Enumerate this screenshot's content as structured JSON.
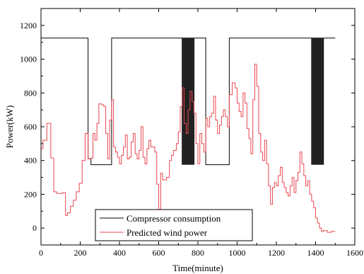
{
  "chart_data": {
    "type": "line",
    "xlabel": "Time(minute)",
    "ylabel": "Power(kW)",
    "xlim": [
      0,
      1600
    ],
    "ylim": [
      -100,
      1300
    ],
    "xticks": [
      0,
      200,
      400,
      600,
      800,
      1000,
      1200,
      1400,
      1600
    ],
    "yticks": [
      0,
      200,
      400,
      600,
      800,
      1000,
      1200
    ],
    "x_tick_labels": [
      "0",
      "200",
      "400",
      "600",
      "800",
      "1000",
      "1200",
      "1400",
      "1600"
    ],
    "y_tick_labels": [
      "0",
      "200",
      "400",
      "600",
      "800",
      "1000",
      "1200"
    ],
    "grid": false,
    "legend_position": "bottom-center",
    "series": [
      {
        "name": "Compressor consumption",
        "color": "#000000",
        "render": "line",
        "points": [
          [
            0,
            1125
          ],
          [
            240,
            1125
          ],
          [
            240,
            410
          ],
          [
            255,
            410
          ],
          [
            255,
            375
          ],
          [
            360,
            375
          ],
          [
            360,
            1125
          ],
          [
            840,
            1125
          ],
          [
            840,
            375
          ],
          [
            960,
            375
          ],
          [
            960,
            1125
          ],
          [
            1500,
            1125
          ]
        ],
        "oscillation_bands": [
          {
            "x_start": 720,
            "x_end": 780,
            "low": 375,
            "high": 1125
          },
          {
            "x_start": 1380,
            "x_end": 1440,
            "low": 375,
            "high": 1125
          }
        ]
      },
      {
        "name": "Predicted wind power",
        "color": "#e8474f",
        "render": "step",
        "points": [
          [
            0,
            470
          ],
          [
            10,
            520
          ],
          [
            30,
            620
          ],
          [
            50,
            415
          ],
          [
            65,
            215
          ],
          [
            80,
            205
          ],
          [
            110,
            210
          ],
          [
            125,
            75
          ],
          [
            135,
            90
          ],
          [
            150,
            130
          ],
          [
            165,
            165
          ],
          [
            180,
            215
          ],
          [
            195,
            265
          ],
          [
            210,
            400
          ],
          [
            225,
            560
          ],
          [
            240,
            410
          ],
          [
            255,
            415
          ],
          [
            265,
            560
          ],
          [
            275,
            520
          ],
          [
            285,
            620
          ],
          [
            295,
            735
          ],
          [
            310,
            730
          ],
          [
            320,
            720
          ],
          [
            330,
            560
          ],
          [
            340,
            410
          ],
          [
            350,
            640
          ],
          [
            360,
            760
          ],
          [
            370,
            480
          ],
          [
            380,
            450
          ],
          [
            390,
            420
          ],
          [
            400,
            380
          ],
          [
            410,
            430
          ],
          [
            420,
            480
          ],
          [
            430,
            550
          ],
          [
            440,
            410
          ],
          [
            450,
            420
          ],
          [
            460,
            510
          ],
          [
            470,
            560
          ],
          [
            480,
            440
          ],
          [
            490,
            410
          ],
          [
            500,
            460
          ],
          [
            510,
            600
          ],
          [
            520,
            420
          ],
          [
            530,
            380
          ],
          [
            540,
            470
          ],
          [
            550,
            520
          ],
          [
            560,
            480
          ],
          [
            580,
            450
          ],
          [
            590,
            260
          ],
          [
            600,
            110
          ],
          [
            610,
            325
          ],
          [
            620,
            285
          ],
          [
            640,
            300
          ],
          [
            655,
            400
          ],
          [
            665,
            430
          ],
          [
            675,
            460
          ],
          [
            690,
            500
          ],
          [
            700,
            570
          ],
          [
            710,
            720
          ],
          [
            720,
            830
          ],
          [
            730,
            620
          ],
          [
            740,
            560
          ],
          [
            750,
            700
          ],
          [
            760,
            810
          ],
          [
            770,
            750
          ],
          [
            780,
            680
          ],
          [
            790,
            500
          ],
          [
            800,
            380
          ],
          [
            810,
            560
          ],
          [
            820,
            500
          ],
          [
            830,
            450
          ],
          [
            840,
            650
          ],
          [
            850,
            600
          ],
          [
            860,
            660
          ],
          [
            870,
            680
          ],
          [
            880,
            780
          ],
          [
            890,
            640
          ],
          [
            900,
            560
          ],
          [
            910,
            610
          ],
          [
            920,
            660
          ],
          [
            930,
            700
          ],
          [
            940,
            660
          ],
          [
            950,
            600
          ],
          [
            960,
            790
          ],
          [
            975,
            860
          ],
          [
            990,
            830
          ],
          [
            1000,
            740
          ],
          [
            1010,
            690
          ],
          [
            1020,
            660
          ],
          [
            1030,
            800
          ],
          [
            1040,
            740
          ],
          [
            1050,
            590
          ],
          [
            1060,
            530
          ],
          [
            1070,
            440
          ],
          [
            1080,
            760
          ],
          [
            1090,
            970
          ],
          [
            1100,
            840
          ],
          [
            1110,
            560
          ],
          [
            1120,
            450
          ],
          [
            1130,
            400
          ],
          [
            1140,
            520
          ],
          [
            1150,
            380
          ],
          [
            1160,
            250
          ],
          [
            1170,
            140
          ],
          [
            1180,
            240
          ],
          [
            1190,
            270
          ],
          [
            1200,
            250
          ],
          [
            1210,
            310
          ],
          [
            1220,
            360
          ],
          [
            1230,
            270
          ],
          [
            1240,
            240
          ],
          [
            1250,
            210
          ],
          [
            1260,
            190
          ],
          [
            1270,
            250
          ],
          [
            1280,
            300
          ],
          [
            1290,
            210
          ],
          [
            1300,
            280
          ],
          [
            1310,
            330
          ],
          [
            1320,
            450
          ],
          [
            1330,
            380
          ],
          [
            1340,
            310
          ],
          [
            1350,
            250
          ],
          [
            1360,
            280
          ],
          [
            1370,
            200
          ],
          [
            1380,
            160
          ],
          [
            1390,
            120
          ],
          [
            1400,
            60
          ],
          [
            1410,
            30
          ],
          [
            1420,
            0
          ],
          [
            1430,
            -20
          ],
          [
            1440,
            -15
          ],
          [
            1460,
            -25
          ],
          [
            1480,
            -20
          ],
          [
            1500,
            -20
          ]
        ]
      }
    ]
  }
}
